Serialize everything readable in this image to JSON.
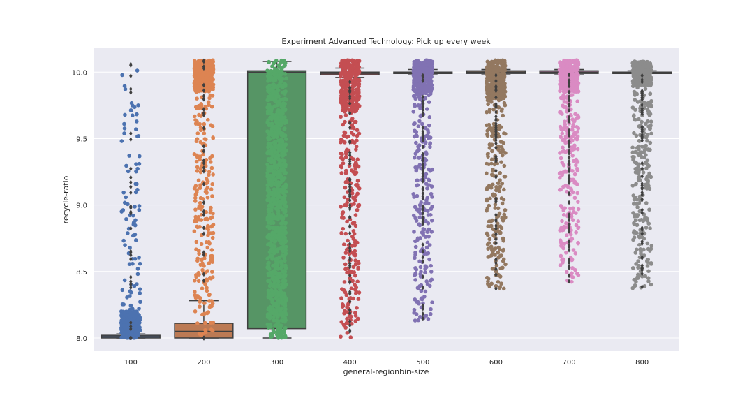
{
  "chart_data": {
    "type": "box",
    "title": "Experiment Advanced Technology: Pick up every week",
    "xlabel": "general-regionbin-size",
    "ylabel": "recycle-ratio",
    "categories": [
      "100",
      "200",
      "300",
      "400",
      "500",
      "600",
      "700",
      "800"
    ],
    "ylim": [
      7.9,
      10.18
    ],
    "yticks": [
      "8.0",
      "8.5",
      "9.0",
      "9.5",
      "10.0"
    ],
    "grid": true,
    "legend": "none",
    "overlay": "strip (jittered points)",
    "background": "#eaeaf2",
    "series": [
      {
        "category": "100",
        "color": "#4c72b0",
        "q1": 8.0,
        "median": 8.01,
        "q3": 8.02,
        "whisker_low": 8.0,
        "whisker_high": 8.03,
        "points_range": [
          8.0,
          10.07
        ],
        "dense_range": [
          8.0,
          8.2
        ]
      },
      {
        "category": "200",
        "color": "#dd8452",
        "q1": 8.0,
        "median": 8.05,
        "q3": 8.11,
        "whisker_low": 8.0,
        "whisker_high": 8.28,
        "points_range": [
          8.0,
          10.09
        ],
        "dense_range": [
          9.85,
          10.09
        ]
      },
      {
        "category": "300",
        "color": "#55a868",
        "q1": 8.07,
        "median": 10.0,
        "q3": 10.01,
        "whisker_low": 8.0,
        "whisker_high": 10.08,
        "points_range": [
          8.0,
          10.09
        ],
        "dense_range": [
          8.0,
          10.09
        ]
      },
      {
        "category": "400",
        "color": "#c44e52",
        "q1": 9.98,
        "median": 9.99,
        "q3": 10.0,
        "whisker_low": 9.96,
        "whisker_high": 10.03,
        "points_range": [
          7.99,
          10.09
        ],
        "dense_range": [
          9.7,
          10.09
        ]
      },
      {
        "category": "500",
        "color": "#8172b3",
        "q1": 9.99,
        "median": 10.0,
        "q3": 10.0,
        "whisker_low": 9.98,
        "whisker_high": 10.02,
        "points_range": [
          8.12,
          10.09
        ],
        "dense_range": [
          9.85,
          10.09
        ]
      },
      {
        "category": "600",
        "color": "#937860",
        "q1": 9.99,
        "median": 10.0,
        "q3": 10.01,
        "whisker_low": 9.98,
        "whisker_high": 10.02,
        "points_range": [
          8.36,
          10.09
        ],
        "dense_range": [
          9.8,
          10.09
        ]
      },
      {
        "category": "700",
        "color": "#da8bc3",
        "q1": 9.99,
        "median": 10.0,
        "q3": 10.01,
        "whisker_low": 9.98,
        "whisker_high": 10.02,
        "points_range": [
          8.42,
          10.09
        ],
        "dense_range": [
          9.85,
          10.09
        ]
      },
      {
        "category": "800",
        "color": "#8c8c8c",
        "q1": 9.99,
        "median": 10.0,
        "q3": 10.0,
        "whisker_low": 9.99,
        "whisker_high": 10.01,
        "points_range": [
          8.37,
          10.08
        ],
        "dense_range": [
          9.9,
          10.08
        ]
      }
    ]
  }
}
